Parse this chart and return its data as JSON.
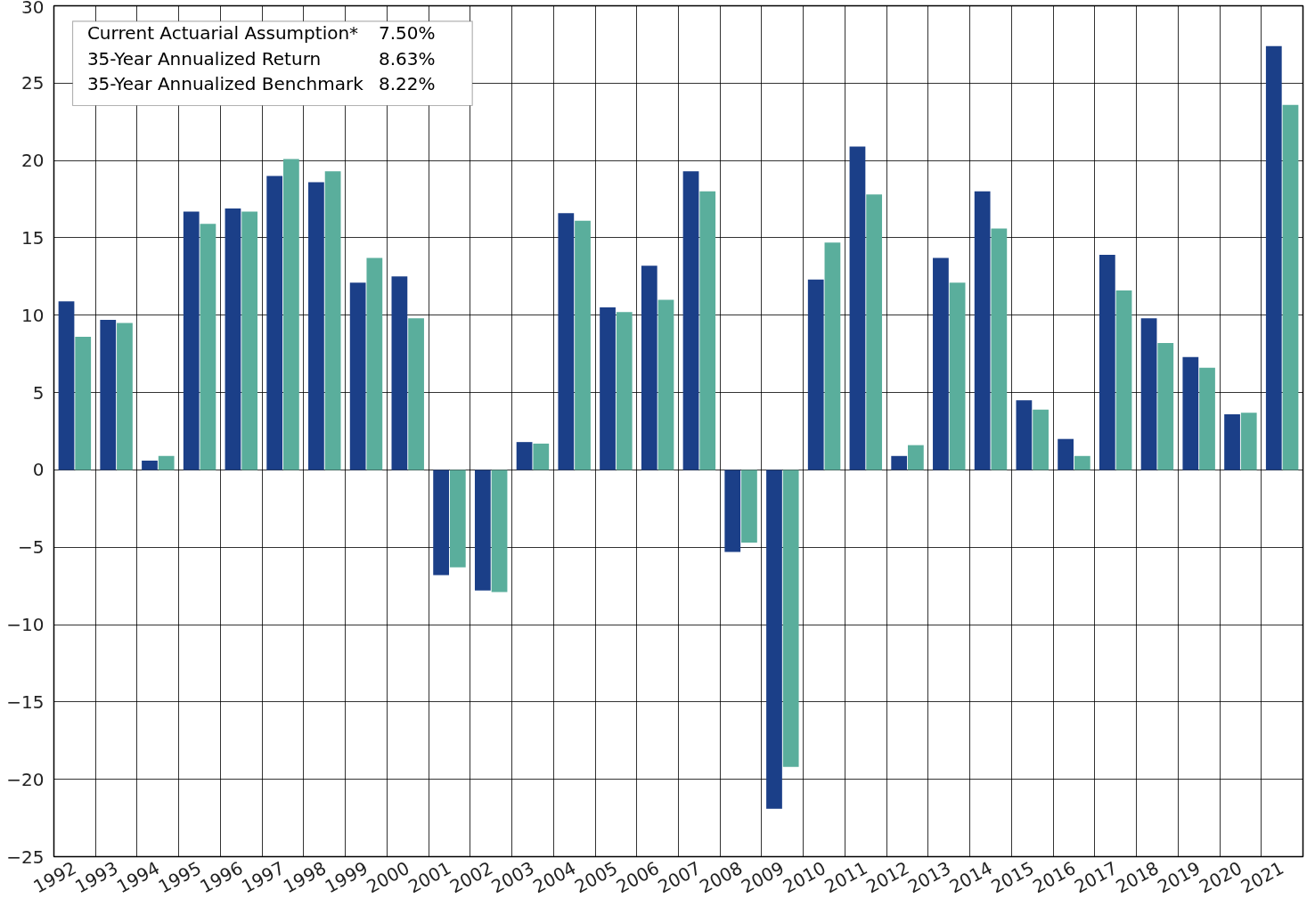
{
  "chart_data": {
    "type": "bar",
    "categories": [
      "1992",
      "1993",
      "1994",
      "1995",
      "1996",
      "1997",
      "1998",
      "1999",
      "2000",
      "2001",
      "2002",
      "2003",
      "2004",
      "2005",
      "2006",
      "2007",
      "2008",
      "2009",
      "2010",
      "2011",
      "2012",
      "2013",
      "2014",
      "2015",
      "2016",
      "2017",
      "2018",
      "2019",
      "2020",
      "2021"
    ],
    "series": [
      {
        "color": "#1b3f88",
        "values": [
          10.9,
          9.7,
          0.6,
          16.7,
          16.9,
          19.0,
          18.6,
          12.1,
          12.5,
          -6.8,
          -7.8,
          1.8,
          16.6,
          10.5,
          13.2,
          19.3,
          -5.3,
          -21.9,
          12.3,
          20.9,
          0.9,
          13.7,
          18.0,
          4.5,
          2.0,
          13.9,
          9.8,
          7.3,
          3.6,
          27.4
        ]
      },
      {
        "color": "#5aae9c",
        "values": [
          8.6,
          9.5,
          0.9,
          15.9,
          16.7,
          20.1,
          19.3,
          13.7,
          9.8,
          -6.3,
          -7.9,
          1.7,
          16.1,
          10.2,
          11.0,
          18.0,
          -4.7,
          -19.2,
          14.7,
          17.8,
          1.6,
          12.1,
          15.6,
          3.9,
          0.9,
          11.6,
          8.2,
          6.6,
          3.7,
          23.6
        ]
      }
    ],
    "ylim": [
      -25,
      30
    ],
    "yticks": [
      -25,
      -20,
      -15,
      -10,
      -5,
      0,
      5,
      10,
      15,
      20,
      25,
      30
    ],
    "grid": true,
    "annotations": [
      "Current Actuarial Assumption*",
      "7.50%",
      "35-Year Annualized Return",
      "8.63%",
      "35-Year Annualized Benchmark",
      "8.22%"
    ]
  }
}
